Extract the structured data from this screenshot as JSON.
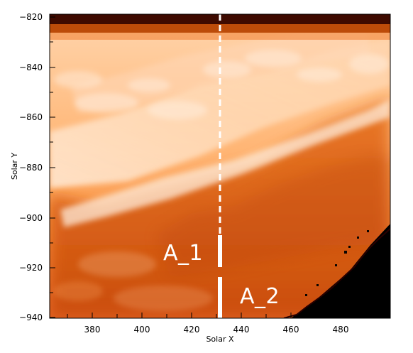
{
  "figure": {
    "xlabel": "Solar X",
    "ylabel": "Solar Y",
    "x_ticks": [
      "380",
      "400",
      "420",
      "440",
      "460",
      "480"
    ],
    "y_ticks": [
      "−820",
      "−840",
      "−860",
      "−880",
      "−900",
      "−920",
      "−940"
    ],
    "annotations": {
      "a1": "A_1",
      "a2": "A_2"
    },
    "colors": {
      "bright": "#fff3e6",
      "mid": "#ff9a3c",
      "deep": "#e06010",
      "dark": "#6a1800",
      "black": "#000000"
    }
  }
}
